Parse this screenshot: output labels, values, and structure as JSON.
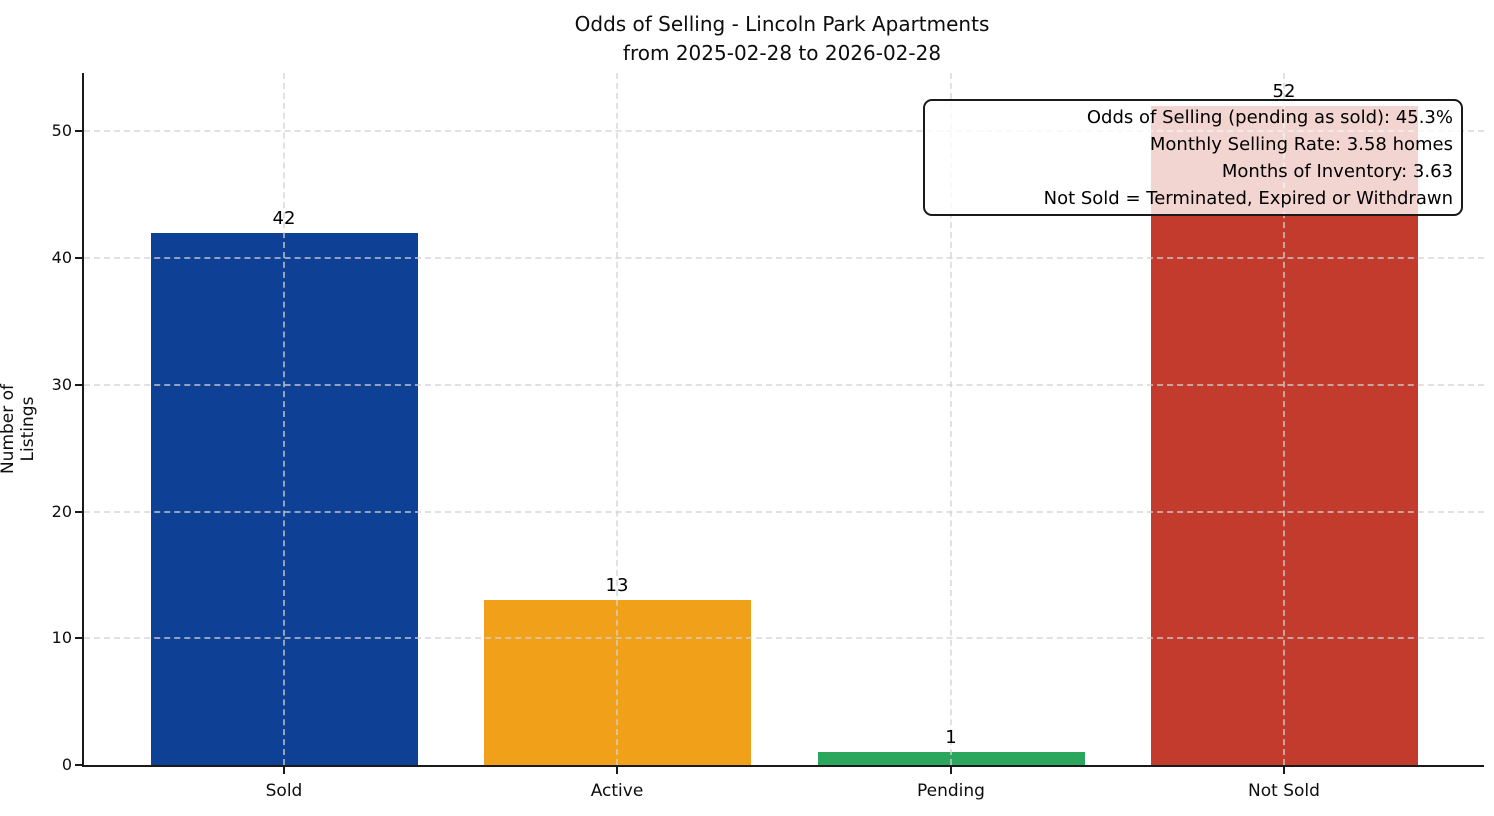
{
  "title": {
    "line1": "Odds of Selling - Lincoln Park Apartments",
    "line2": "from 2025-02-28 to 2026-02-28"
  },
  "y_axis": {
    "label": "Number of Listings",
    "ticks": [
      0,
      10,
      20,
      30,
      40,
      50
    ]
  },
  "annotation": {
    "lines": [
      "Odds of Selling (pending as sold): 45.3%",
      "Monthly Selling Rate: 3.58 homes",
      "Months of Inventory: 3.63",
      "Not Sold = Terminated, Expired or Withdrawn"
    ]
  },
  "chart_data": {
    "type": "bar",
    "title": "Odds of Selling - Lincoln Park Apartments\nfrom 2025-02-28 to 2026-02-28",
    "categories": [
      "Sold",
      "Active",
      "Pending",
      "Not Sold"
    ],
    "values": [
      42,
      13,
      1,
      52
    ],
    "bar_colors": [
      "#0E4095",
      "#F0A019",
      "#2BA75D",
      "#C23B2D"
    ],
    "value_labels": [
      "42",
      "13",
      "1",
      "52"
    ],
    "xlabel": "",
    "ylabel": "Number of Listings",
    "ylim": [
      0,
      54.6
    ],
    "yticks": [
      0,
      10,
      20,
      30,
      40,
      50
    ],
    "grid": "dashed both axes, light gray, drawn above bars",
    "legend": "none",
    "annotation_box": {
      "position": "top-right",
      "lines": [
        "Odds of Selling (pending as sold): 45.3%",
        "Monthly Selling Rate: 3.58 homes",
        "Months of Inventory: 3.63",
        "Not Sold = Terminated, Expired or Withdrawn"
      ]
    }
  },
  "colors": {
    "background": "#FFFFFF",
    "spine": "#1A1A1A",
    "grid": "#D3D3D3",
    "text": "#000000",
    "annotation_background": "rgba(255,255,255,0.78)"
  }
}
